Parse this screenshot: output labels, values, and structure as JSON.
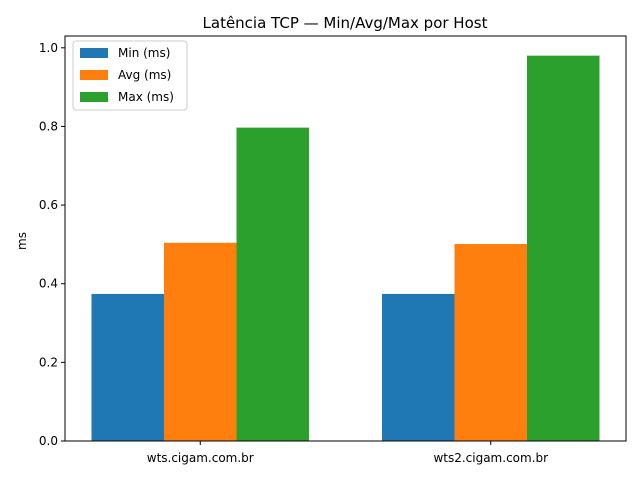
{
  "chart_data": {
    "type": "bar",
    "title": "Latência TCP — Min/Avg/Max por Host",
    "xlabel": "",
    "ylabel": "ms",
    "categories": [
      "wts.cigam.com.br",
      "wts2.cigam.com.br"
    ],
    "series": [
      {
        "name": "Min (ms)",
        "color": "#1f77b4",
        "values": [
          0.374,
          0.374
        ]
      },
      {
        "name": "Avg (ms)",
        "color": "#ff7f0e",
        "values": [
          0.504,
          0.501
        ]
      },
      {
        "name": "Max (ms)",
        "color": "#2ca02c",
        "values": [
          0.797,
          0.98
        ]
      }
    ],
    "ylim": [
      0,
      1.03
    ],
    "yticks": [
      0.0,
      0.2,
      0.4,
      0.6,
      0.8,
      1.0
    ],
    "ytick_labels": [
      "0.0",
      "0.2",
      "0.4",
      "0.6",
      "0.8",
      "1.0"
    ],
    "grid": false,
    "legend_position": "top-left"
  }
}
